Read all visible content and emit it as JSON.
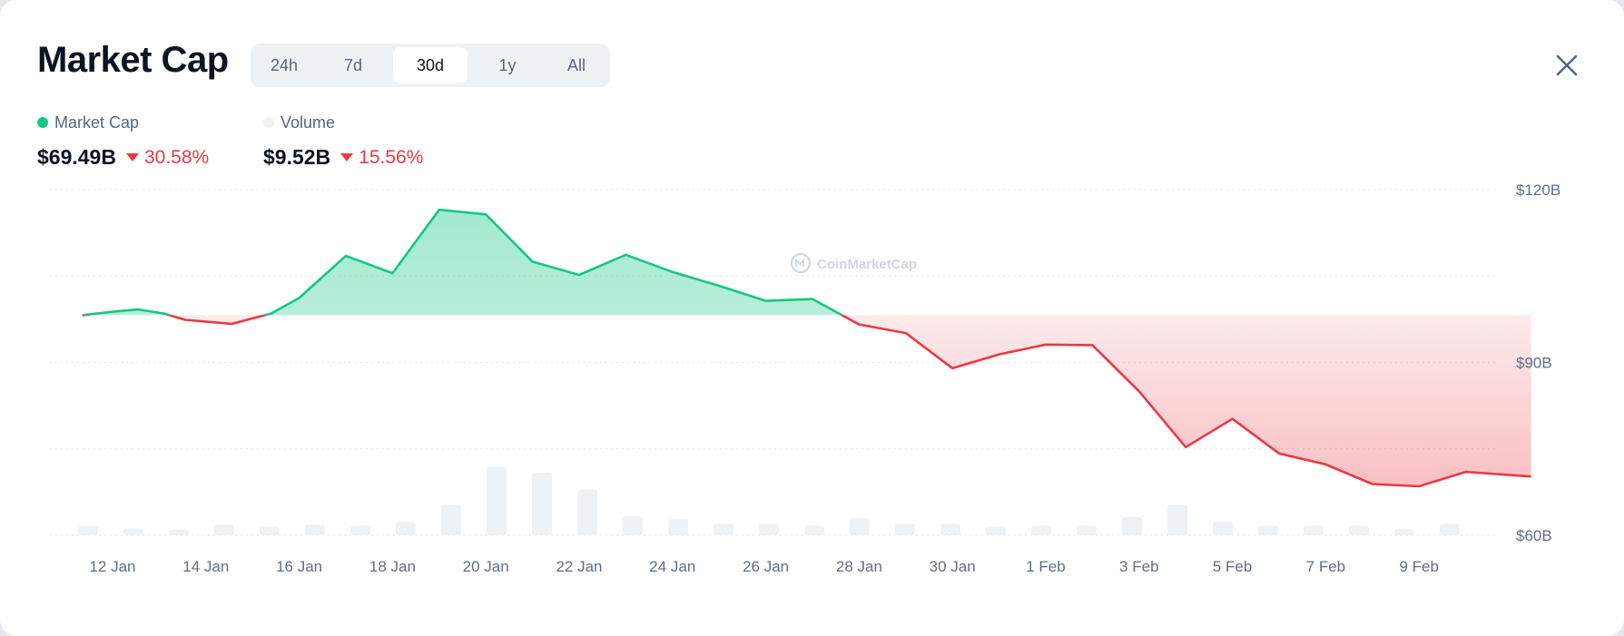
{
  "header": {
    "title": "Market Cap",
    "close_icon": "close-icon"
  },
  "range_tabs": [
    {
      "label": "24h",
      "active": false
    },
    {
      "label": "7d",
      "active": false
    },
    {
      "label": "30d",
      "active": true
    },
    {
      "label": "1y",
      "active": false
    },
    {
      "label": "All",
      "active": false
    }
  ],
  "legend": {
    "market_cap": {
      "label": "Market Cap",
      "value": "$69.49B",
      "change": "30.58%",
      "dot_color": "#16c784"
    },
    "volume": {
      "label": "Volume",
      "value": "$9.52B",
      "change": "15.56%",
      "dot_color": "#eff2f5"
    }
  },
  "colors": {
    "up": "#16c784",
    "down": "#ea3943",
    "volume_bar": "#eff2f5",
    "grid": "#e3e6eb"
  },
  "watermark": "CoinMarketCap",
  "chart_data": {
    "type": "area",
    "y_ticks": [
      "$120B",
      "$90B",
      "$60B"
    ],
    "x_ticks": [
      "12 Jan",
      "14 Jan",
      "16 Jan",
      "18 Jan",
      "20 Jan",
      "22 Jan",
      "24 Jan",
      "26 Jan",
      "28 Jan",
      "30 Jan",
      "1 Feb",
      "3 Feb",
      "5 Feb",
      "7 Feb",
      "9 Feb"
    ],
    "ylim": [
      60,
      120
    ],
    "xlim": [
      11.2,
      42.4
    ],
    "baseline": 98.2,
    "grid": true,
    "series": [
      {
        "type": "line",
        "unit": "B USD",
        "points": [
          [
            11.35,
            98.2
          ],
          [
            12.0,
            98.8
          ],
          [
            12.55,
            99.2
          ],
          [
            13.1,
            98.5
          ],
          [
            13.55,
            97.4
          ],
          [
            14.55,
            96.7
          ],
          [
            15.4,
            98.5
          ],
          [
            16.0,
            101.2
          ],
          [
            17.0,
            108.5
          ],
          [
            18.0,
            105.5
          ],
          [
            19.0,
            116.5
          ],
          [
            20.0,
            115.7
          ],
          [
            21.0,
            107.5
          ],
          [
            22.0,
            105.2
          ],
          [
            23.0,
            108.7
          ],
          [
            24.0,
            105.7
          ],
          [
            25.0,
            103.3
          ],
          [
            26.0,
            100.7
          ],
          [
            27.0,
            101.0
          ],
          [
            28.0,
            96.6
          ],
          [
            29.0,
            95.1
          ],
          [
            30.0,
            89.0
          ],
          [
            31.0,
            91.4
          ],
          [
            32.0,
            93.1
          ],
          [
            33.0,
            93.0
          ],
          [
            34.0,
            85.0
          ],
          [
            35.0,
            75.3
          ],
          [
            36.0,
            80.2
          ],
          [
            37.0,
            74.2
          ],
          [
            38.0,
            72.3
          ],
          [
            39.0,
            68.9
          ],
          [
            40.0,
            68.5
          ],
          [
            41.0,
            71.0
          ],
          [
            42.4,
            70.2
          ]
        ]
      },
      {
        "type": "bar",
        "name": "Volume",
        "unit": "relative",
        "values": [
          5,
          3.5,
          3,
          5.5,
          4.5,
          5.5,
          5,
          7,
          16,
          36,
          33,
          24,
          10,
          8.5,
          6,
          6,
          5,
          9,
          6,
          6,
          4.5,
          5,
          5,
          9.5,
          16,
          7,
          5,
          5,
          5,
          3.5,
          6
        ]
      }
    ]
  }
}
